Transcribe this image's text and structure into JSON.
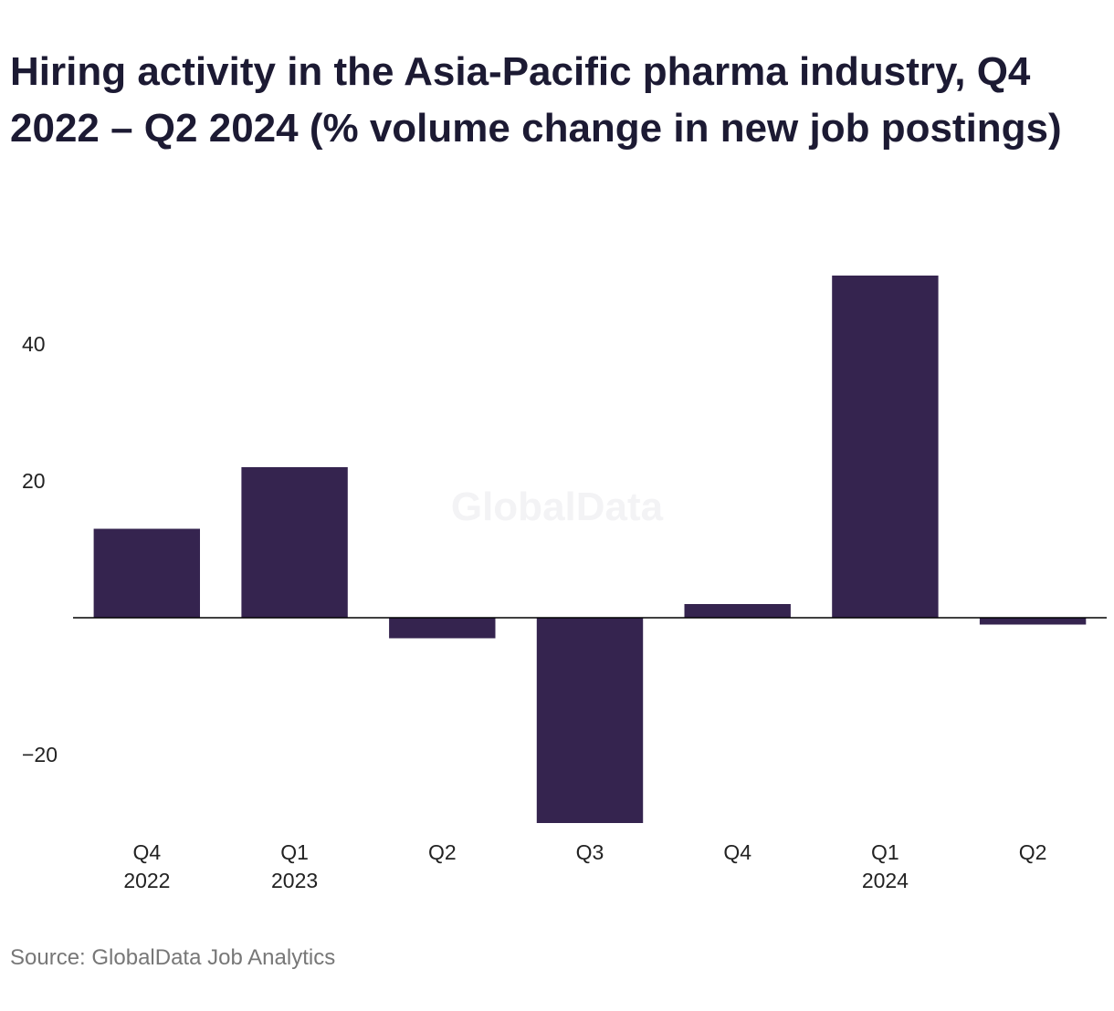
{
  "chart_data": {
    "type": "bar",
    "title": "Hiring activity in the Asia-Pacific pharma industry, Q4 2022 – Q2 2024 (% volume change in new job postings)",
    "categories": [
      [
        "Q4",
        "2022"
      ],
      [
        "Q1",
        "2023"
      ],
      [
        "Q2",
        ""
      ],
      [
        "Q3",
        ""
      ],
      [
        "Q4",
        ""
      ],
      [
        "Q1",
        "2024"
      ],
      [
        "Q2",
        ""
      ]
    ],
    "values": [
      13,
      22,
      -3,
      -30,
      2,
      50,
      -1
    ],
    "yticks": [
      40,
      20,
      -20
    ],
    "ytick_labels": [
      "40",
      "20",
      "−20"
    ],
    "ylim": [
      -30,
      50
    ],
    "xlabel": "",
    "ylabel": "",
    "grid": false,
    "legend": "none",
    "bar_color": "#35244f",
    "axis_color": "#000000"
  },
  "watermark": "GlobalData",
  "source": "Source: GlobalData Job Analytics"
}
